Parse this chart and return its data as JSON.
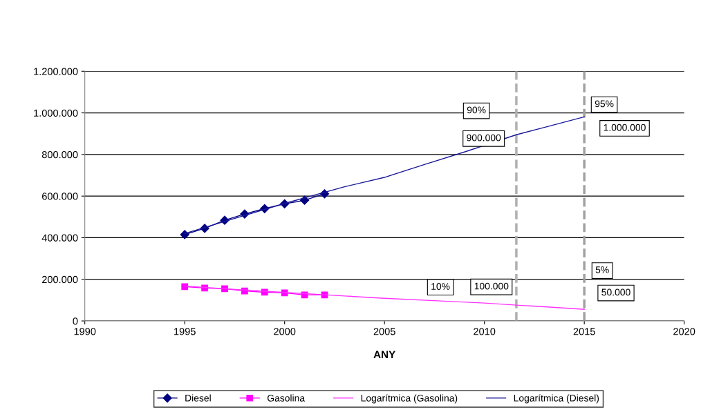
{
  "chart_data": {
    "type": "line",
    "xlabel": "ANY",
    "xlim": [
      1990,
      2020
    ],
    "xticks": [
      1990,
      1995,
      2000,
      2005,
      2010,
      2015,
      2020
    ],
    "ylim": [
      0,
      1200000
    ],
    "yticks": [
      0,
      {
        "value": 200000,
        "label": "200.000"
      },
      {
        "value": 400000,
        "label": "400.000"
      },
      {
        "value": 600000,
        "label": "600.000"
      },
      {
        "value": 800000,
        "label": "800.000"
      },
      {
        "value": 1000000,
        "label": "1.000.000"
      },
      {
        "value": 1200000,
        "label": "1.200.000"
      }
    ],
    "grid": "y",
    "legend": "bottom",
    "series": [
      {
        "name": "Diesel",
        "color": "#000080",
        "marker": "diamond",
        "x": [
          1995,
          1996,
          1997,
          1998,
          1999,
          2000,
          2001,
          2002
        ],
        "values": [
          415000,
          445000,
          484000,
          514000,
          540000,
          563000,
          580000,
          611000
        ]
      },
      {
        "name": "Gasolina",
        "color": "#ff00ff",
        "marker": "square",
        "x": [
          1995,
          1996,
          1997,
          1998,
          1999,
          2000,
          2001,
          2002
        ],
        "values": [
          165000,
          158000,
          155000,
          144000,
          138000,
          135000,
          125000,
          125000
        ]
      },
      {
        "name": "Logarítmica (Gasolina)",
        "color": "#ff33ff",
        "marker": "none",
        "x": [
          1995,
          1997,
          2000,
          2003,
          2005,
          2008,
          2010,
          2011.6,
          2013,
          2015
        ],
        "values": [
          168000,
          155000,
          137000,
          120000,
          109000,
          95000,
          86000,
          76000,
          68000,
          56000
        ]
      },
      {
        "name": "Logarítmica (Diesel)",
        "color": "#1a1a99",
        "marker": "none",
        "x": [
          1995,
          1997,
          2000,
          2003,
          2005,
          2007,
          2009,
          2011.6,
          2013,
          2015
        ],
        "values": [
          420000,
          478000,
          565000,
          645000,
          690000,
          752000,
          812000,
          895000,
          930000,
          981000
        ]
      }
    ],
    "ref_lines": [
      {
        "axis": "x",
        "value": 2011.6,
        "color": "#b0b0b0",
        "line_style": "dashed"
      },
      {
        "axis": "x",
        "value": 2015,
        "color": "#a0a0a0",
        "line_style": "dashed"
      }
    ],
    "annotations": [
      {
        "text": "90%",
        "x": 2009.6,
        "y": 1010000
      },
      {
        "text": "900.000",
        "x": 2011.6,
        "y": 895000
      },
      {
        "text": "95%",
        "x": 2016.0,
        "y": 1040000
      },
      {
        "text": "1.000.000",
        "x": 2015,
        "y": 981000
      },
      {
        "text": "10%",
        "x": 2007.8,
        "y": 162000
      },
      {
        "text": "100.000",
        "x": 2011.6,
        "y": 76000
      },
      {
        "text": "5%",
        "x": 2015.9,
        "y": 242000
      },
      {
        "text": "50.000",
        "x": 2015,
        "y": 56000
      }
    ]
  }
}
